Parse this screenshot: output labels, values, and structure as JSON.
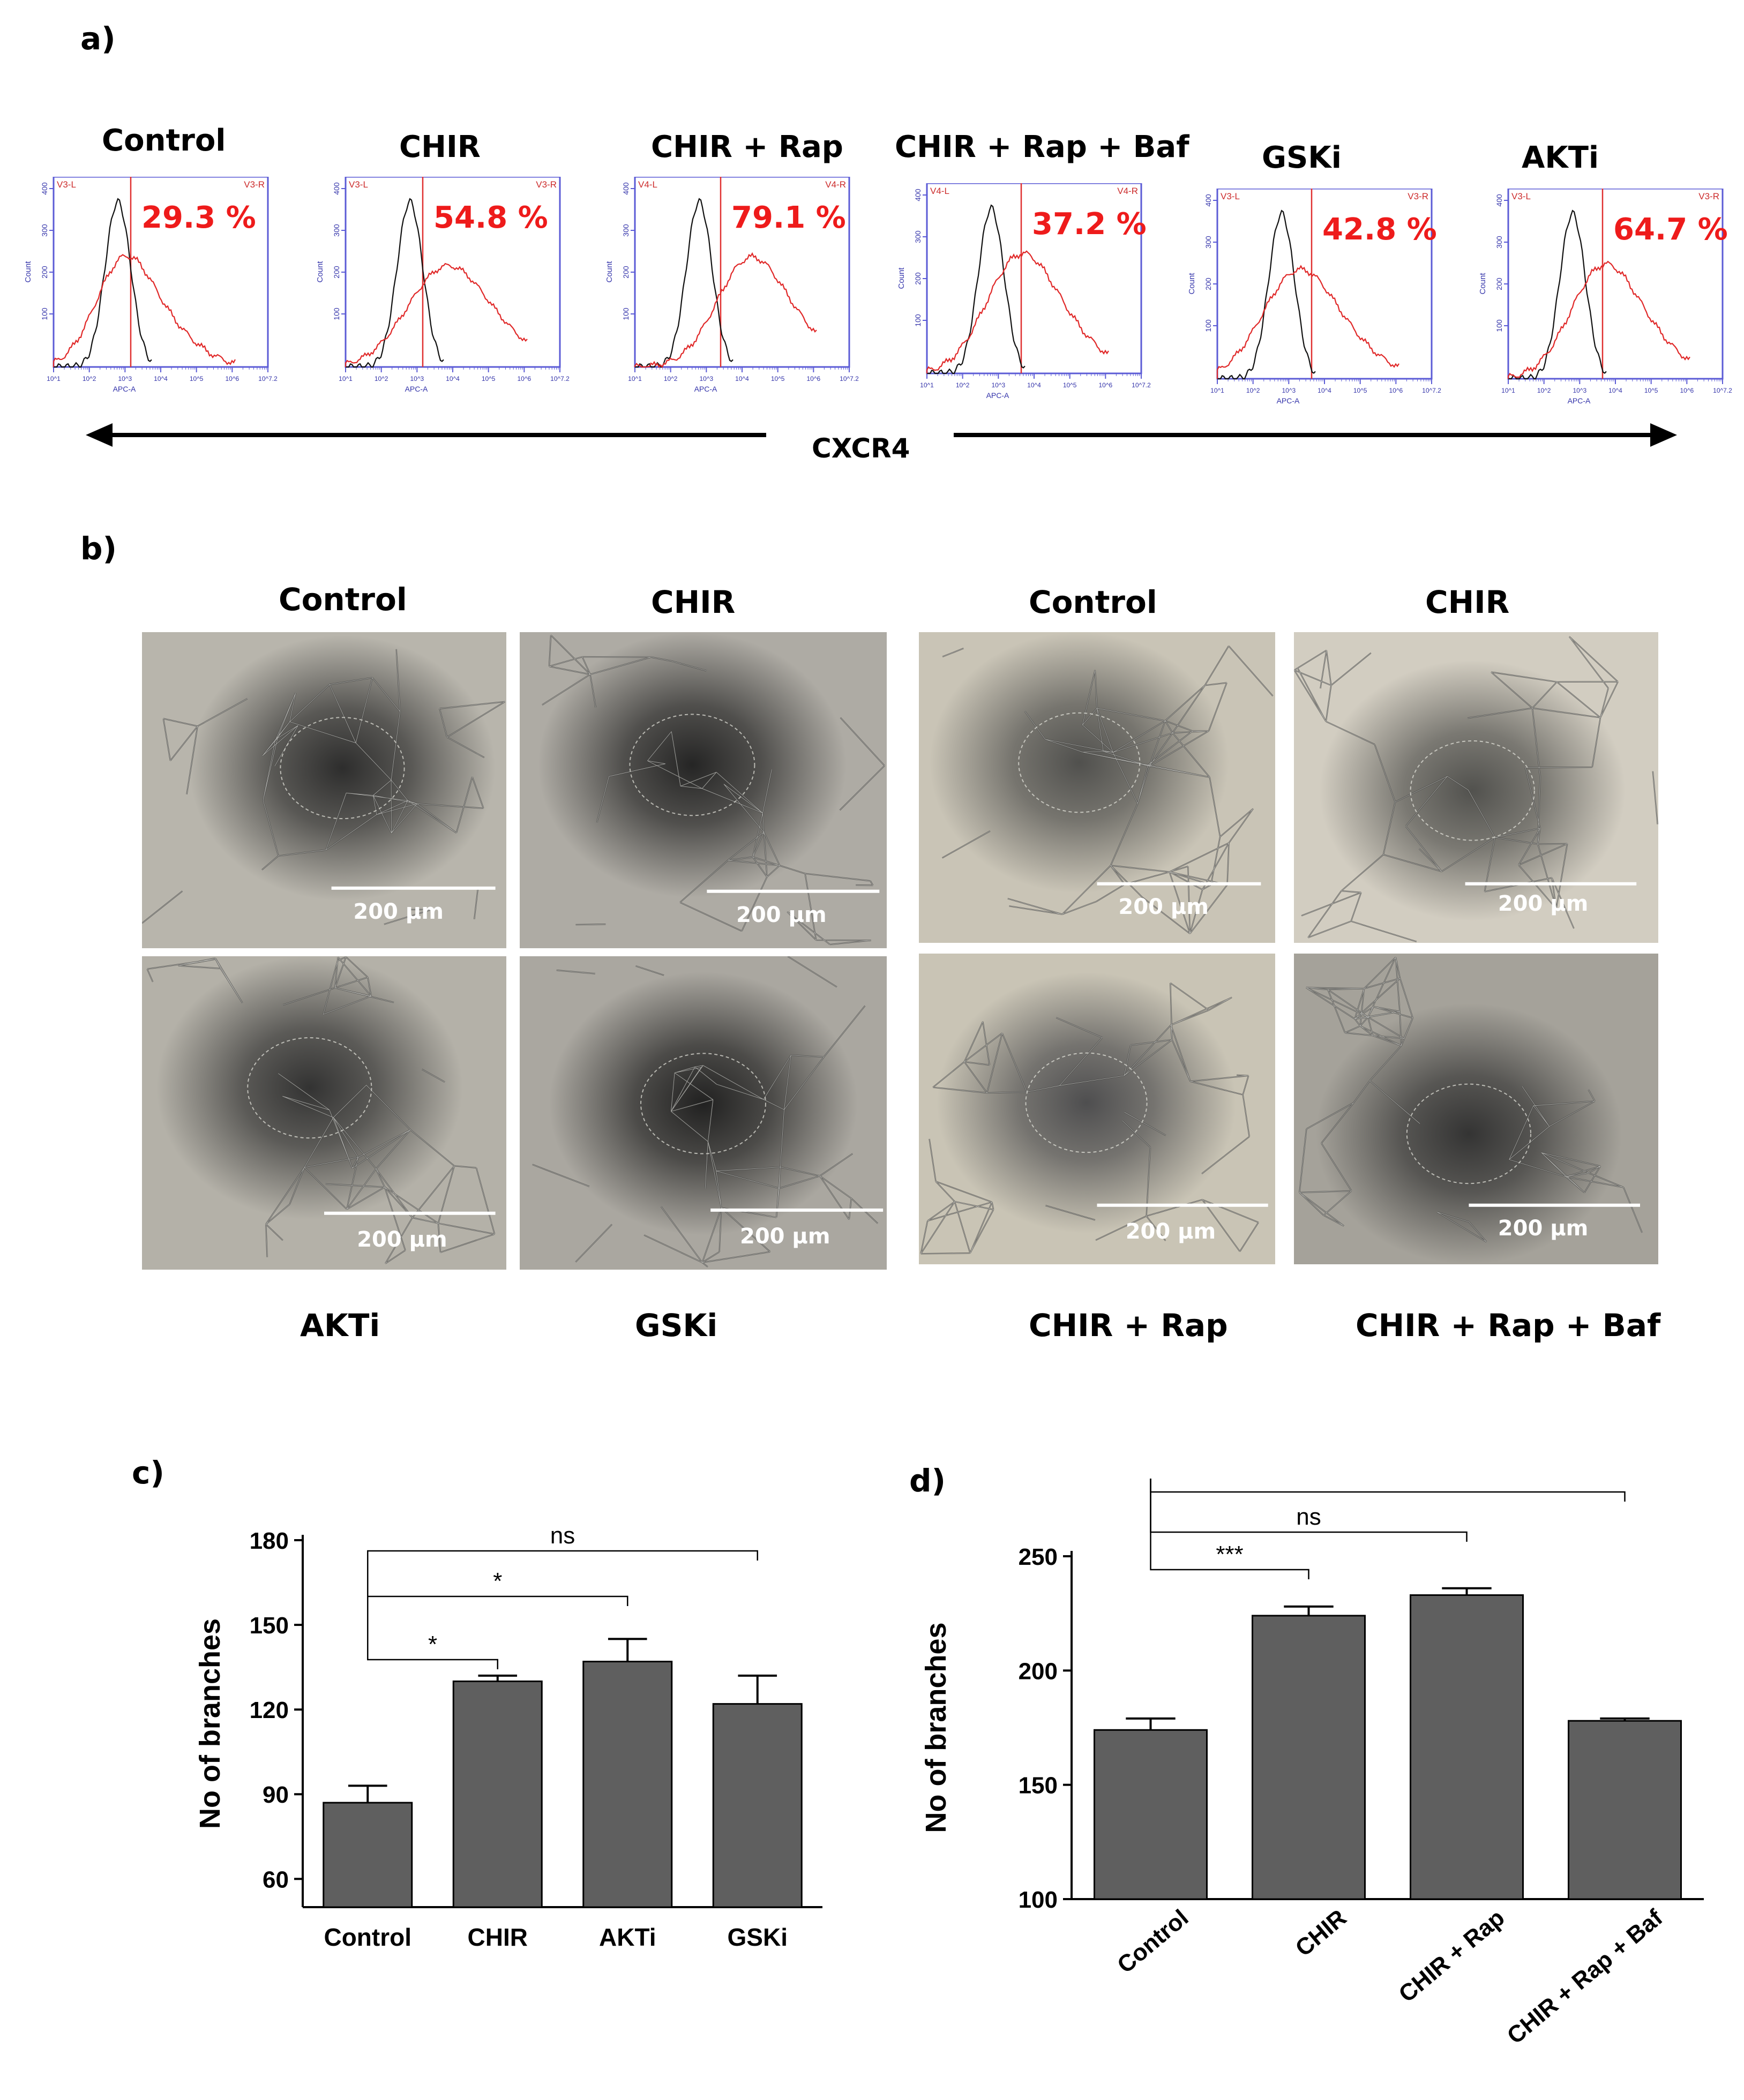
{
  "panels": {
    "a": "a)",
    "b": "b)",
    "c": "c)",
    "d": "d)"
  },
  "panel_a": {
    "axis_label": "CXCR4",
    "x_axis_label": "APC-A",
    "y_axis_label": "Count",
    "y_ticks": [
      "400",
      "300",
      "200",
      "100"
    ],
    "x_ticks": [
      "10^1",
      "10^2",
      "10^3",
      "10^4",
      "10^5",
      "10^6",
      "10^7.2"
    ],
    "plots": [
      {
        "title": "Control",
        "percent": "29.3 %",
        "gate_left": "V3-L",
        "gate_right": "V3-R",
        "gate_pos": 0.36
      },
      {
        "title": "CHIR",
        "percent": "54.8 %",
        "gate_left": "V3-L",
        "gate_right": "V3-R",
        "gate_pos": 0.36
      },
      {
        "title": "CHIR + Rap",
        "percent": "79.1 %",
        "gate_left": "V4-L",
        "gate_right": "V4-R",
        "gate_pos": 0.4
      },
      {
        "title": "CHIR + Rap + Baf",
        "percent": "37.2 %",
        "gate_left": "V4-L",
        "gate_right": "V4-R",
        "gate_pos": 0.44
      },
      {
        "title": "GSKi",
        "percent": "42.8 %",
        "gate_left": "V3-L",
        "gate_right": "V3-R",
        "gate_pos": 0.44
      },
      {
        "title": "AKTi",
        "percent": "64.7 %",
        "gate_left": "V3-L",
        "gate_right": "V3-R",
        "gate_pos": 0.44
      }
    ]
  },
  "panel_b": {
    "scale_label": "200 μm",
    "top_titles": [
      "Control",
      "CHIR",
      "Control",
      "CHIR"
    ],
    "bottom_titles": [
      "AKTi",
      "GSKi",
      "CHIR + Rap",
      "CHIR + Rap + Baf"
    ]
  },
  "chart_data": [
    {
      "type": "bar",
      "panel": "c)",
      "categories": [
        "Control",
        "CHIR",
        "AKTi",
        "GSKi"
      ],
      "values": [
        87,
        130,
        137,
        122
      ],
      "errors": [
        6,
        2,
        8,
        10
      ],
      "ylabel": "No of branches",
      "ylim": [
        50,
        180
      ],
      "yticks": [
        60,
        90,
        120,
        150,
        180
      ],
      "bar_color": "#5f5f5f",
      "significance": [
        {
          "from": "Control",
          "to": "CHIR",
          "label": "*"
        },
        {
          "from": "Control",
          "to": "AKTi",
          "label": "*"
        },
        {
          "from": "Control",
          "to": "GSKi",
          "label": "ns"
        }
      ]
    },
    {
      "type": "bar",
      "panel": "d)",
      "categories": [
        "Control",
        "CHIR",
        "CHIR + Rap",
        "CHIR + Rap + Baf"
      ],
      "values": [
        174,
        224,
        233,
        178
      ],
      "errors": [
        5,
        4,
        3,
        1
      ],
      "ylabel": "No of branches",
      "ylim": [
        100,
        250
      ],
      "yticks": [
        100,
        150,
        200,
        250
      ],
      "bar_color": "#5f5f5f",
      "significance": [
        {
          "from": "Control",
          "to": "CHIR",
          "label": "***"
        },
        {
          "from": "Control",
          "to": "CHIR + Rap",
          "label": "ns"
        },
        {
          "from": "Control",
          "to": "CHIR + Rap + Baf",
          "label": "***"
        }
      ]
    }
  ]
}
